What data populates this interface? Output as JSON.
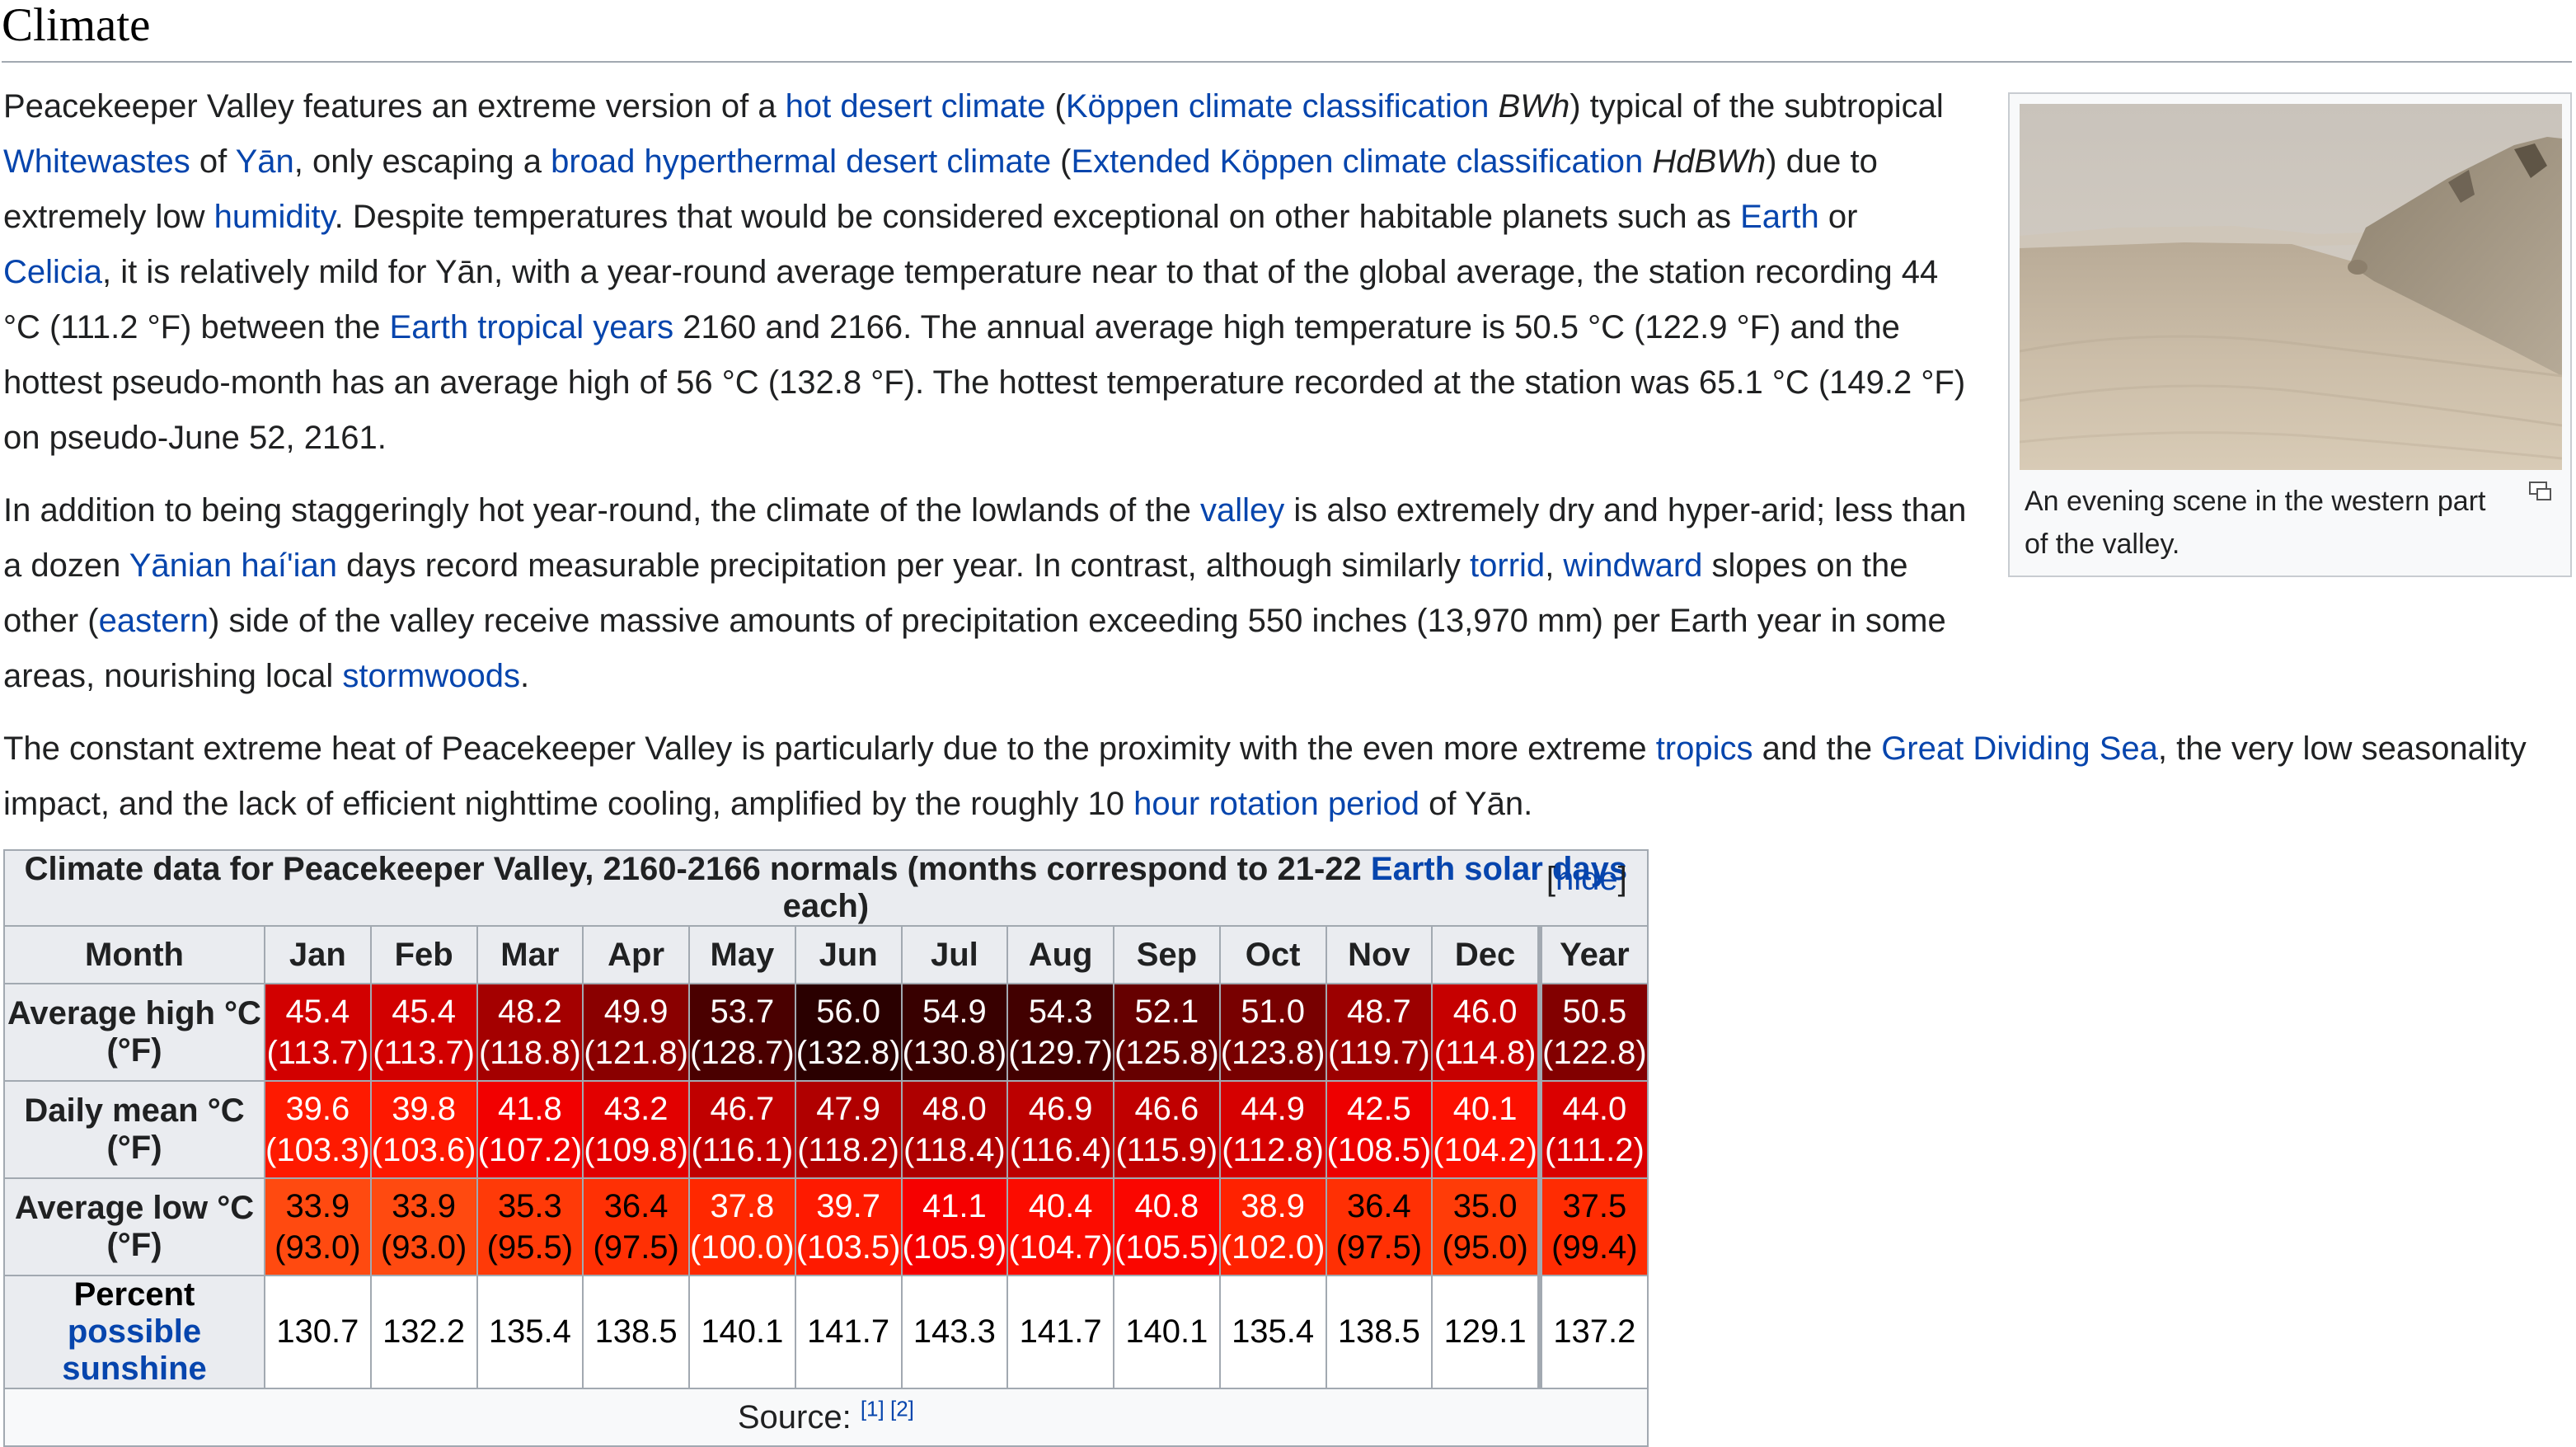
{
  "heading": "Climate",
  "p1": {
    "t1": "Peacekeeper Valley features an extreme version of a ",
    "l1": "hot desert climate",
    "t2": " (",
    "l2": "Köppen climate classification",
    "t3": " ",
    "i1": "BWh",
    "t4": ") typical of the subtropical ",
    "l3": "Whitewastes",
    "t5": " of ",
    "l4": "Yān",
    "t6": ", only escaping a ",
    "l5": "broad hyperthermal desert climate",
    "t7": " (",
    "l6": "Extended Köppen climate classification",
    "t8": " ",
    "i2": "HdBWh",
    "t9": ") due to extremely low ",
    "l7": "humidity",
    "t10": ". Despite temperatures that would be considered exceptional on other habitable planets such as ",
    "l8": "Earth",
    "t11": " or ",
    "l9": "Celicia",
    "t12": ", it is relatively mild for Yān, with a year-round average temperature near to that of the global average, the station recording 44 °C (111.2 °F) between the ",
    "l10": "Earth tropical years",
    "t13": " 2160 and 2166. The annual average high temperature is 50.5 °C (122.9 °F) and the hottest pseudo-month has an average high of 56 °C (132.8 °F). The hottest temperature recorded at the station was 65.1 °C (149.2 °F) on pseudo-June 52, 2161."
  },
  "p2": {
    "t1": "In addition to being staggeringly hot year-round, the climate of the lowlands of the ",
    "l1": "valley",
    "t2": " is also extremely dry and hyper-arid; less than a dozen ",
    "l2": "Yānian haí'ian",
    "t3": " days record measurable precipitation per year. In contrast, although similarly ",
    "l3": "torrid",
    "t4": ", ",
    "l4": "windward",
    "t5": " slopes on the other (",
    "l5": "eastern",
    "t6": ") side of the valley receive massive amounts of precipitation exceeding 550 inches (13,970 mm) per Earth year in some areas, nourishing local ",
    "l6": "stormwoods",
    "t7": "."
  },
  "p3": {
    "t1": "The constant extreme heat of Peacekeeper Valley is particularly due to the proximity with the even more extreme ",
    "l1": "tropics",
    "t2": " and the ",
    "l2": "Great Dividing Sea",
    "t3": ", the very low seasonality impact, and the lack of efficient nighttime cooling, amplified by the roughly 10 ",
    "l3": "hour rotation period",
    "t4": " of Yān."
  },
  "thumb": {
    "caption": "An evening scene in the western part of the valley.",
    "icon": "magnify-icon"
  },
  "table": {
    "caption_t1": "Climate data for Peacekeeper Valley, 2160-2166 normals (months correspond to 21-22 ",
    "caption_link": "Earth solar days",
    "caption_t2": " each)",
    "hide_open": "[",
    "hide_label": "hide",
    "hide_close": "]",
    "month_label": "Month",
    "months": [
      "Jan",
      "Feb",
      "Mar",
      "Apr",
      "May",
      "Jun",
      "Jul",
      "Aug",
      "Sep",
      "Oct",
      "Nov",
      "Dec"
    ],
    "year_label": "Year",
    "rows": [
      {
        "label": "Average high °C (°F)",
        "c": [
          "45.4",
          "45.4",
          "48.2",
          "49.9",
          "53.7",
          "56.0",
          "54.9",
          "54.3",
          "52.1",
          "51.0",
          "48.7",
          "46.0",
          "50.5"
        ],
        "f": [
          "(113.7)",
          "(113.7)",
          "(118.8)",
          "(121.8)",
          "(128.7)",
          "(132.8)",
          "(130.8)",
          "(129.7)",
          "(125.8)",
          "(123.8)",
          "(119.7)",
          "(114.8)",
          "(122.8)"
        ],
        "bg": [
          "#d20000",
          "#d20000",
          "#a40000",
          "#8a0000",
          "#4a0000",
          "#2a0000",
          "#380000",
          "#420000",
          "#660000",
          "#780000",
          "#9c0000",
          "#c60000",
          "#820000"
        ],
        "fg": [
          "#ffffff",
          "#ffffff",
          "#ffffff",
          "#ffffff",
          "#ffffff",
          "#ffffff",
          "#ffffff",
          "#ffffff",
          "#ffffff",
          "#ffffff",
          "#ffffff",
          "#ffffff",
          "#ffffff"
        ]
      },
      {
        "label": "Daily mean °C (°F)",
        "c": [
          "39.6",
          "39.8",
          "41.8",
          "43.2",
          "46.7",
          "47.9",
          "48.0",
          "46.9",
          "46.6",
          "44.9",
          "42.5",
          "40.1",
          "44.0"
        ],
        "f": [
          "(103.3)",
          "(103.6)",
          "(107.2)",
          "(109.8)",
          "(116.1)",
          "(118.2)",
          "(118.4)",
          "(116.4)",
          "(115.9)",
          "(112.8)",
          "(108.5)",
          "(104.2)",
          "(111.2)"
        ],
        "bg": [
          "#fe1a00",
          "#fe1800",
          "#f20000",
          "#e20000",
          "#c00000",
          "#b00000",
          "#ae0000",
          "#bc0000",
          "#c00000",
          "#d60000",
          "#ee0000",
          "#fc1000",
          "#da0000"
        ],
        "fg": [
          "#ffffff",
          "#ffffff",
          "#ffffff",
          "#ffffff",
          "#ffffff",
          "#ffffff",
          "#ffffff",
          "#ffffff",
          "#ffffff",
          "#ffffff",
          "#ffffff",
          "#ffffff",
          "#ffffff"
        ]
      },
      {
        "label": "Average low °C (°F)",
        "c": [
          "33.9",
          "33.9",
          "35.3",
          "36.4",
          "37.8",
          "39.7",
          "41.1",
          "40.4",
          "40.8",
          "38.9",
          "36.4",
          "35.0",
          "37.5"
        ],
        "f": [
          "(93.0)",
          "(93.0)",
          "(95.5)",
          "(97.5)",
          "(100.0)",
          "(103.5)",
          "(105.9)",
          "(104.7)",
          "(105.5)",
          "(102.0)",
          "(97.5)",
          "(95.0)",
          "(99.4)"
        ],
        "bg": [
          "#ff4a10",
          "#ff4a10",
          "#ff3a08",
          "#ff3004",
          "#ff2800",
          "#fe1a00",
          "#f60000",
          "#fc0c00",
          "#fa0600",
          "#ff2200",
          "#ff3004",
          "#ff3c08",
          "#ff2c02"
        ],
        "fg": [
          "#000000",
          "#000000",
          "#000000",
          "#000000",
          "#ffffff",
          "#ffffff",
          "#ffffff",
          "#ffffff",
          "#ffffff",
          "#ffffff",
          "#000000",
          "#000000",
          "#000000"
        ]
      }
    ],
    "sunshine_t1": "Percent ",
    "sunshine_link": "possible sunshine",
    "sunshine": [
      "130.7",
      "132.2",
      "135.4",
      "138.5",
      "140.1",
      "141.7",
      "143.3",
      "141.7",
      "140.1",
      "135.4",
      "138.5",
      "129.1",
      "137.2"
    ],
    "source_label": "Source: ",
    "source_refs": [
      "[1]",
      "[2]"
    ]
  }
}
